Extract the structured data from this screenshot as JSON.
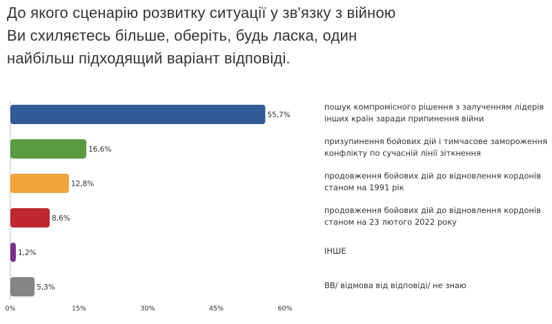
{
  "chart_data": {
    "type": "barh",
    "title": [
      "До якого сценарію розвитку ситуації у зв'язку з війною",
      "Ви схиляєтесь більше, оберіть, будь ласка, один",
      "найбільш підходящий варіант відповіді."
    ],
    "categories": [
      "пошук компромісного рішення з залученням лідерів інших країн заради припинення війни",
      "призупинення бойових дій і тимчасове замороження конфлікту по сучасній лінії зіткнення",
      "продовження бойових дій до відновлення кордонів станом на 1991 рік",
      "продовження бойових дій до відновлення кордонів станом на 23 лютого 2022 року",
      "ІНШЕ",
      "ВВ/ відмова від відповіді/ не знаю"
    ],
    "values": [
      55.7,
      16.6,
      12.8,
      8.6,
      1.2,
      5.3
    ],
    "value_labels": [
      "55,7%",
      "16,6%",
      "12,8%",
      "8,6%",
      "1,2%",
      "5,3%"
    ],
    "colors": [
      "#2f5b98",
      "#5b9b40",
      "#f2a33b",
      "#c1272f",
      "#7a2f8c",
      "#858585"
    ],
    "xlim": [
      0,
      60
    ],
    "xticks": [
      {
        "value": 0,
        "label": "0%"
      },
      {
        "value": 15,
        "label": "15%"
      },
      {
        "value": 30,
        "label": "30%"
      },
      {
        "value": 45,
        "label": "45%"
      },
      {
        "value": 60,
        "label": "60%"
      }
    ]
  }
}
